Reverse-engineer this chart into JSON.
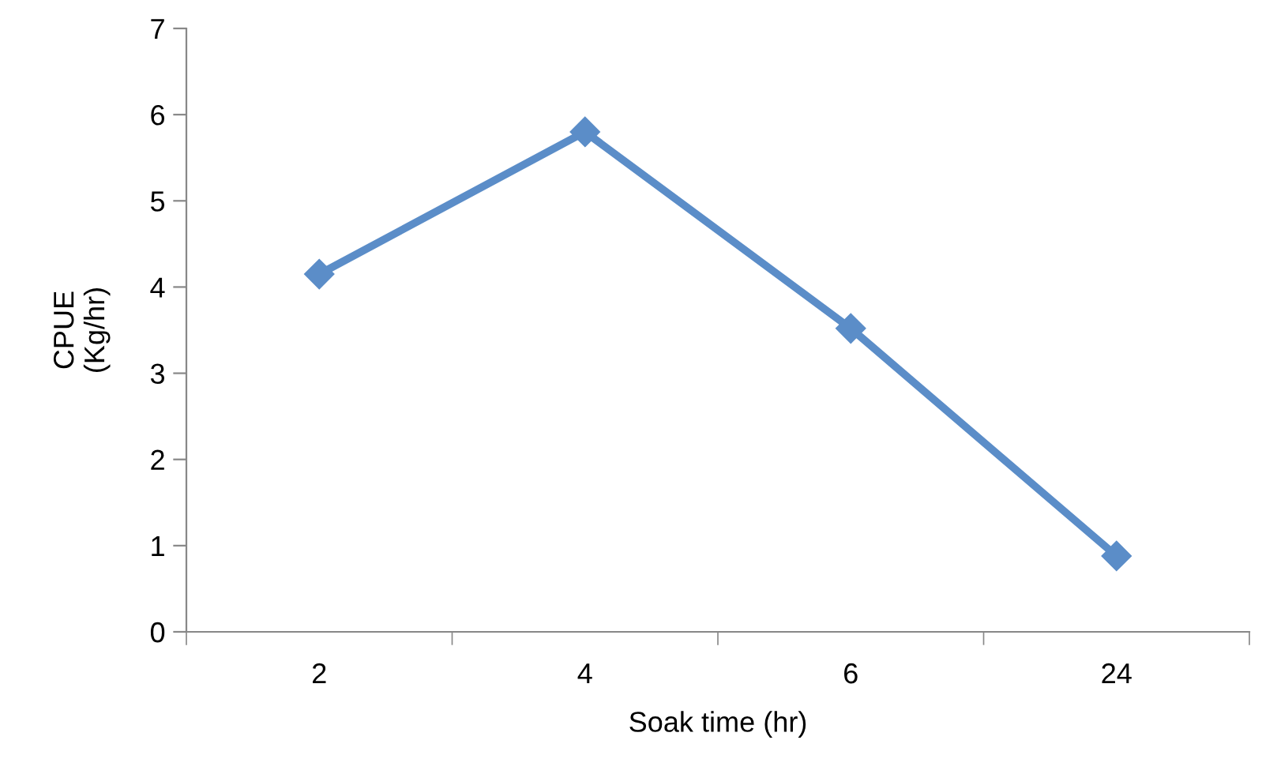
{
  "chart_data": {
    "type": "line",
    "xlabel": "Soak time (hr)",
    "ylabel": "CPUE\n(Kg/hr)",
    "categories": [
      "2",
      "4",
      "6",
      "24"
    ],
    "series": [
      {
        "color": "#5b8dc8",
        "values": [
          4.15,
          5.8,
          3.52,
          0.88
        ]
      }
    ],
    "ylim": [
      0,
      7
    ],
    "yticks": [
      0,
      1,
      2,
      3,
      4,
      5,
      6,
      7
    ],
    "grid": false,
    "marker": "diamond",
    "line_style": "solid"
  }
}
